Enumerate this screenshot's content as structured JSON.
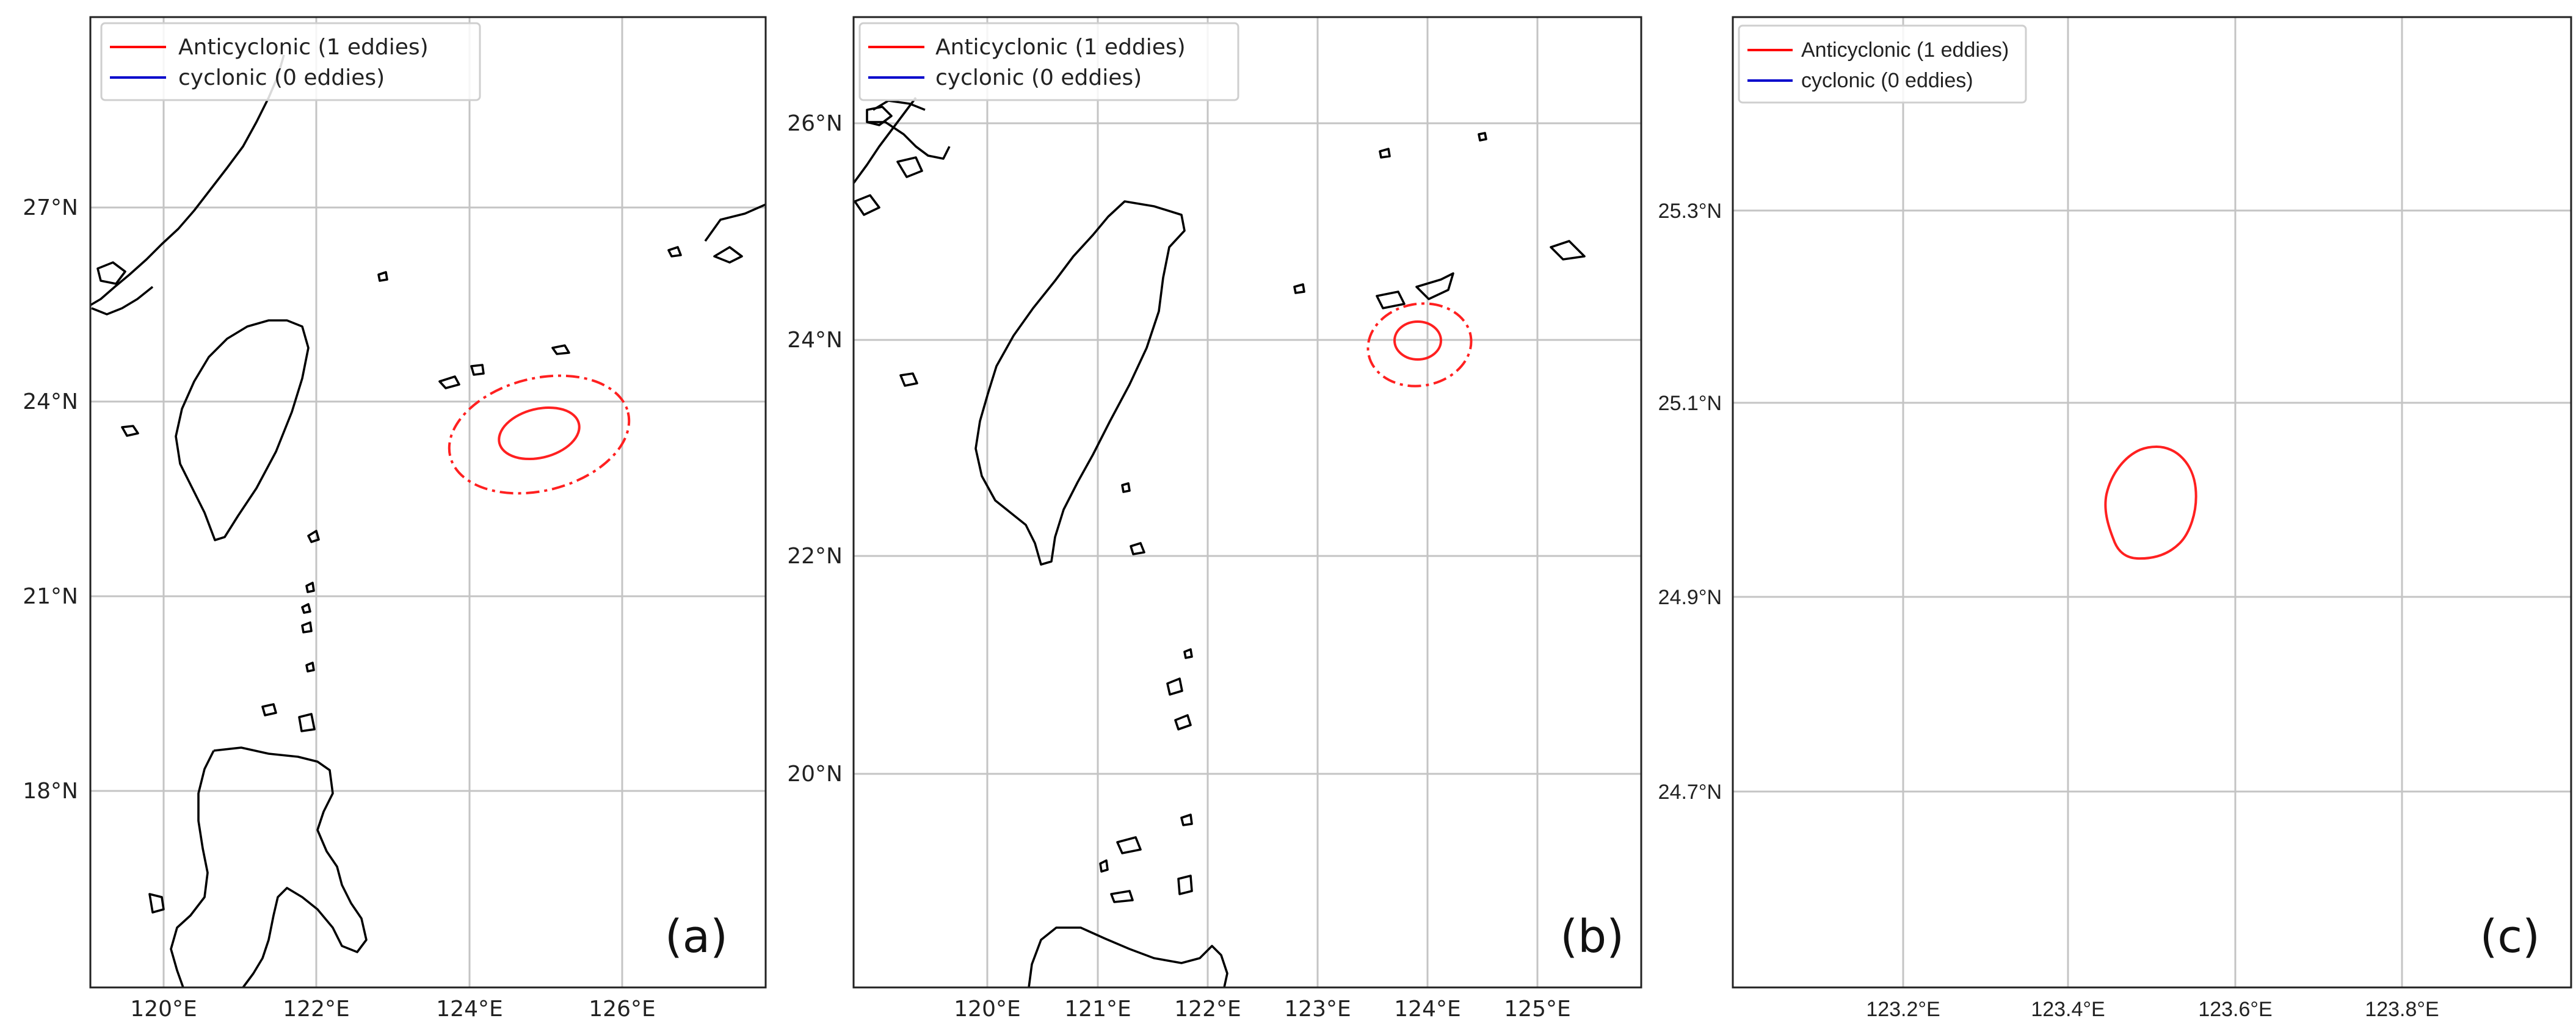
{
  "panels": [
    {
      "id": "a",
      "label": "(a)",
      "legend": [
        {
          "text": "Anticyclonic (1 eddies)",
          "color": "#ff0000"
        },
        {
          "text": "cyclonic (0 eddies)",
          "color": "#0000cc"
        }
      ],
      "x_ticks": [
        "120°E",
        "122°E",
        "124°E",
        "126°E"
      ],
      "y_ticks": [
        "27°N",
        "24°N",
        "21°N",
        "18°N"
      ]
    },
    {
      "id": "b",
      "label": "(b)",
      "legend": [
        {
          "text": "Anticyclonic (1 eddies)",
          "color": "#ff0000"
        },
        {
          "text": "cyclonic (0 eddies)",
          "color": "#0000cc"
        }
      ],
      "x_ticks": [
        "120°E",
        "121°E",
        "122°E",
        "123°E",
        "124°E",
        "125°E"
      ],
      "y_ticks": [
        "26°N",
        "24°N",
        "22°N",
        "20°N"
      ]
    },
    {
      "id": "c",
      "label": "(c)",
      "legend": [
        {
          "text": "Anticyclonic (1 eddies)",
          "color": "#ff0000"
        },
        {
          "text": "cyclonic (0 eddies)",
          "color": "#0000cc"
        }
      ],
      "x_ticks": [
        "123.2°E",
        "123.4°E",
        "123.6°E",
        "123.8°E"
      ],
      "y_ticks": [
        "25.3°N",
        "25.1°N",
        "24.9°N",
        "24.7°N"
      ]
    }
  ]
}
